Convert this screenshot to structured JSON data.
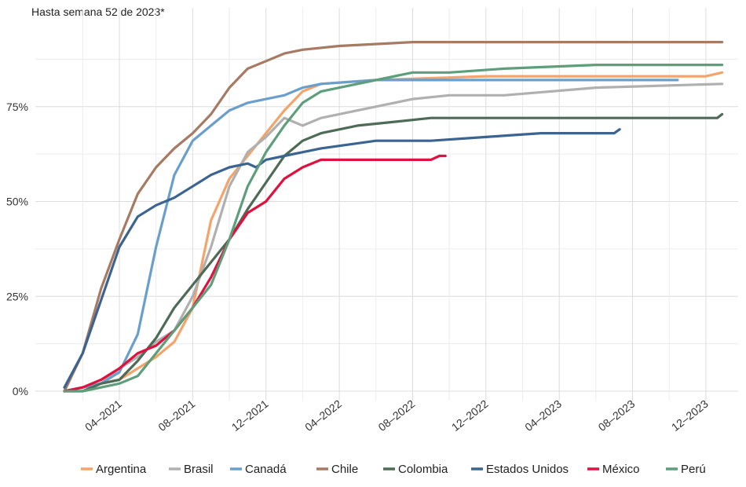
{
  "chart_data": {
    "type": "line",
    "title": "Hasta semana 52 de 2023*",
    "xlabel": "",
    "ylabel": "",
    "x_ticks": [
      "04–2021",
      "08–2021",
      "12–2021",
      "04–2022",
      "08–2022",
      "12–2022",
      "04–2023",
      "08–2023",
      "12–2023"
    ],
    "y_ticks": [
      "0%",
      "25%",
      "50%",
      "75%"
    ],
    "ylim": [
      0,
      100
    ],
    "grid": true,
    "legend_position": "bottom",
    "series": [
      {
        "name": "Argentina",
        "color": "#F4A46A",
        "points": [
          [
            "2021-01-01",
            0
          ],
          [
            "2021-02-01",
            1
          ],
          [
            "2021-03-01",
            2
          ],
          [
            "2021-04-01",
            3
          ],
          [
            "2021-05-01",
            6
          ],
          [
            "2021-06-01",
            9
          ],
          [
            "2021-07-01",
            13
          ],
          [
            "2021-08-01",
            22
          ],
          [
            "2021-09-01",
            45
          ],
          [
            "2021-10-01",
            56
          ],
          [
            "2021-11-01",
            62
          ],
          [
            "2021-12-01",
            68
          ],
          [
            "2022-01-01",
            74
          ],
          [
            "2022-02-01",
            79
          ],
          [
            "2022-03-01",
            81
          ],
          [
            "2022-06-01",
            82
          ],
          [
            "2022-12-01",
            83
          ],
          [
            "2023-06-01",
            83
          ],
          [
            "2023-12-01",
            83
          ],
          [
            "2023-12-28",
            84
          ]
        ]
      },
      {
        "name": "Brasil",
        "color": "#B0B0B0",
        "points": [
          [
            "2021-01-01",
            0
          ],
          [
            "2021-02-01",
            1
          ],
          [
            "2021-03-01",
            2
          ],
          [
            "2021-04-01",
            6
          ],
          [
            "2021-05-01",
            9
          ],
          [
            "2021-06-01",
            13
          ],
          [
            "2021-07-01",
            16
          ],
          [
            "2021-08-01",
            25
          ],
          [
            "2021-09-01",
            38
          ],
          [
            "2021-10-01",
            54
          ],
          [
            "2021-11-01",
            63
          ],
          [
            "2021-12-01",
            67
          ],
          [
            "2022-01-01",
            72
          ],
          [
            "2022-02-01",
            70
          ],
          [
            "2022-03-01",
            72
          ],
          [
            "2022-05-01",
            74
          ],
          [
            "2022-07-01",
            76
          ],
          [
            "2022-08-01",
            77
          ],
          [
            "2022-10-01",
            78
          ],
          [
            "2023-01-01",
            78
          ],
          [
            "2023-06-01",
            80
          ],
          [
            "2023-12-28",
            81
          ]
        ]
      },
      {
        "name": "Canadá",
        "color": "#6A9FCC",
        "points": [
          [
            "2021-01-01",
            0
          ],
          [
            "2021-02-01",
            1
          ],
          [
            "2021-03-01",
            2
          ],
          [
            "2021-04-01",
            5
          ],
          [
            "2021-05-01",
            15
          ],
          [
            "2021-06-01",
            38
          ],
          [
            "2021-07-01",
            57
          ],
          [
            "2021-08-01",
            66
          ],
          [
            "2021-09-01",
            70
          ],
          [
            "2021-10-01",
            74
          ],
          [
            "2021-11-01",
            76
          ],
          [
            "2021-12-01",
            77
          ],
          [
            "2022-01-01",
            78
          ],
          [
            "2022-02-01",
            80
          ],
          [
            "2022-03-01",
            81
          ],
          [
            "2022-06-01",
            82
          ],
          [
            "2022-10-01",
            82
          ],
          [
            "2022-11-01",
            82
          ],
          [
            "2023-06-01",
            82
          ],
          [
            "2023-10-01",
            82
          ],
          [
            "2023-10-15",
            82
          ]
        ]
      },
      {
        "name": "Chile",
        "color": "#A67A63",
        "points": [
          [
            "2021-01-01",
            0
          ],
          [
            "2021-02-01",
            10
          ],
          [
            "2021-03-01",
            27
          ],
          [
            "2021-04-01",
            40
          ],
          [
            "2021-05-01",
            52
          ],
          [
            "2021-06-01",
            59
          ],
          [
            "2021-07-01",
            64
          ],
          [
            "2021-08-01",
            68
          ],
          [
            "2021-09-01",
            73
          ],
          [
            "2021-10-01",
            80
          ],
          [
            "2021-11-01",
            85
          ],
          [
            "2021-12-01",
            87
          ],
          [
            "2022-01-01",
            89
          ],
          [
            "2022-02-01",
            90
          ],
          [
            "2022-04-01",
            91
          ],
          [
            "2022-08-01",
            92
          ],
          [
            "2022-12-01",
            92
          ],
          [
            "2023-12-28",
            92
          ]
        ]
      },
      {
        "name": "Colombia",
        "color": "#4E6B57",
        "points": [
          [
            "2021-01-01",
            0
          ],
          [
            "2021-02-01",
            0
          ],
          [
            "2021-03-01",
            2
          ],
          [
            "2021-04-01",
            3
          ],
          [
            "2021-05-01",
            8
          ],
          [
            "2021-06-01",
            14
          ],
          [
            "2021-07-01",
            22
          ],
          [
            "2021-08-01",
            28
          ],
          [
            "2021-09-01",
            34
          ],
          [
            "2021-10-01",
            40
          ],
          [
            "2021-11-01",
            48
          ],
          [
            "2021-12-01",
            55
          ],
          [
            "2022-01-01",
            62
          ],
          [
            "2022-02-01",
            66
          ],
          [
            "2022-03-01",
            68
          ],
          [
            "2022-05-01",
            70
          ],
          [
            "2022-07-01",
            71
          ],
          [
            "2022-09-01",
            72
          ],
          [
            "2022-12-01",
            72
          ],
          [
            "2023-06-01",
            72
          ],
          [
            "2023-12-20",
            72
          ],
          [
            "2023-12-28",
            73
          ]
        ]
      },
      {
        "name": "Estados Unidos",
        "color": "#3B6490",
        "points": [
          [
            "2021-01-01",
            1
          ],
          [
            "2021-02-01",
            10
          ],
          [
            "2021-03-01",
            24
          ],
          [
            "2021-04-01",
            38
          ],
          [
            "2021-05-01",
            46
          ],
          [
            "2021-06-01",
            49
          ],
          [
            "2021-07-01",
            51
          ],
          [
            "2021-08-01",
            54
          ],
          [
            "2021-09-01",
            57
          ],
          [
            "2021-10-01",
            59
          ],
          [
            "2021-11-01",
            60
          ],
          [
            "2021-11-15",
            59
          ],
          [
            "2021-12-01",
            61
          ],
          [
            "2022-01-01",
            62
          ],
          [
            "2022-03-01",
            64
          ],
          [
            "2022-06-01",
            66
          ],
          [
            "2022-09-01",
            66
          ],
          [
            "2022-12-01",
            67
          ],
          [
            "2023-03-01",
            68
          ],
          [
            "2023-06-01",
            68
          ],
          [
            "2023-07-01",
            68
          ],
          [
            "2023-07-10",
            69
          ]
        ]
      },
      {
        "name": "México",
        "color": "#E0103F",
        "points": [
          [
            "2021-01-01",
            0
          ],
          [
            "2021-02-01",
            1
          ],
          [
            "2021-03-01",
            3
          ],
          [
            "2021-04-01",
            6
          ],
          [
            "2021-05-01",
            10
          ],
          [
            "2021-06-01",
            12
          ],
          [
            "2021-07-01",
            16
          ],
          [
            "2021-08-01",
            22
          ],
          [
            "2021-09-01",
            30
          ],
          [
            "2021-10-01",
            40
          ],
          [
            "2021-11-01",
            47
          ],
          [
            "2021-12-01",
            50
          ],
          [
            "2022-01-01",
            56
          ],
          [
            "2022-02-01",
            59
          ],
          [
            "2022-03-01",
            61
          ],
          [
            "2022-05-01",
            61
          ],
          [
            "2022-07-01",
            61
          ],
          [
            "2022-09-01",
            61
          ],
          [
            "2022-09-15",
            62
          ],
          [
            "2022-09-25",
            62
          ]
        ]
      },
      {
        "name": "Perú",
        "color": "#5E9E7A",
        "points": [
          [
            "2021-01-01",
            0
          ],
          [
            "2021-02-01",
            0
          ],
          [
            "2021-03-01",
            1
          ],
          [
            "2021-04-01",
            2
          ],
          [
            "2021-05-01",
            4
          ],
          [
            "2021-06-01",
            10
          ],
          [
            "2021-07-01",
            16
          ],
          [
            "2021-08-01",
            22
          ],
          [
            "2021-09-01",
            28
          ],
          [
            "2021-10-01",
            40
          ],
          [
            "2021-11-01",
            54
          ],
          [
            "2021-12-01",
            63
          ],
          [
            "2022-01-01",
            70
          ],
          [
            "2022-02-01",
            76
          ],
          [
            "2022-03-01",
            79
          ],
          [
            "2022-04-01",
            80
          ],
          [
            "2022-06-01",
            82
          ],
          [
            "2022-08-01",
            84
          ],
          [
            "2022-10-01",
            84
          ],
          [
            "2023-01-01",
            85
          ],
          [
            "2023-06-01",
            86
          ],
          [
            "2023-12-28",
            86
          ]
        ]
      }
    ]
  }
}
